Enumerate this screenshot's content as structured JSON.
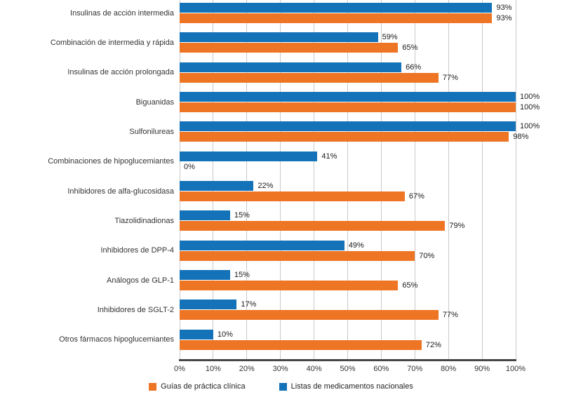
{
  "chart_data": {
    "type": "bar",
    "orientation": "horizontal",
    "title": "",
    "xlabel": "",
    "ylabel": "",
    "grid": true,
    "legend_position": "bottom",
    "xlim": [
      0,
      100
    ],
    "value_suffix": "%",
    "x_ticks": [
      "0%",
      "10%",
      "20%",
      "30%",
      "40%",
      "50%",
      "60%",
      "70%",
      "80%",
      "90%",
      "100%"
    ],
    "categories": [
      "Insulinas de acción intermedia",
      "Combinación de intermedia y rápida",
      "Insulinas de acción prolongada",
      "Biguanidas",
      "Sulfonilureas",
      "Combinaciones de hipoglucemiantes",
      "Inhibidores de alfa-glucosidasa",
      "Tiazolidinadionas",
      "Inhibidores de DPP-4",
      "Análogos de GLP-1",
      "Inhibidores de SGLT-2",
      "Otros fármacos hipoglucemiantes"
    ],
    "series": [
      {
        "key": "listas-nacionales",
        "name": "Listas de medicamentos nacionales",
        "color": "#1372B8",
        "values": [
          93,
          59,
          66,
          100,
          100,
          41,
          22,
          15,
          49,
          15,
          17,
          10
        ]
      },
      {
        "key": "guias-clinicas",
        "name": "Guías de práctica clínica",
        "color": "#ED7524",
        "values": [
          93,
          65,
          77,
          100,
          98,
          0,
          67,
          79,
          70,
          65,
          77,
          72
        ]
      }
    ],
    "legend": [
      {
        "key": "guias-clinicas",
        "label": "Guías de práctica clínica",
        "color": "#ED7524"
      },
      {
        "key": "listas-nacionales",
        "label": "Listas de medicamentos nacionales",
        "color": "#1372B8"
      }
    ]
  }
}
